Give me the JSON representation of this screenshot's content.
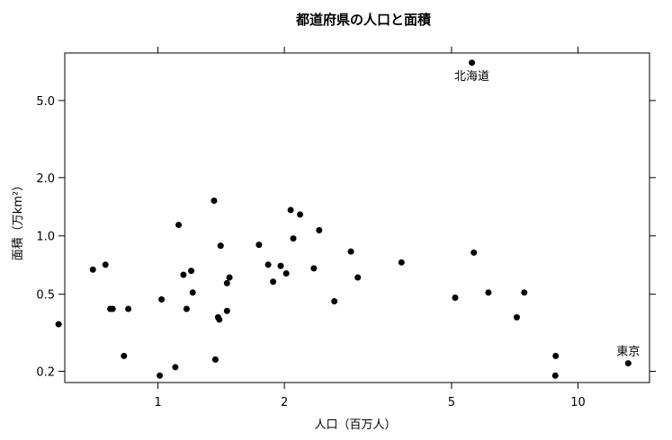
{
  "chart_data": {
    "type": "scatter",
    "title": "都道府県の人口と面積",
    "xlabel": "人口（百万人）",
    "ylabel": "面積（万km²）",
    "x_scale": "log",
    "y_scale": "log",
    "xlim": [
      0.6,
      14.8
    ],
    "ylim": [
      0.175,
      8.8
    ],
    "x_ticks": [
      1,
      2,
      5,
      10
    ],
    "x_tick_labels": [
      "1",
      "2",
      "5",
      "10"
    ],
    "y_ticks": [
      0.2,
      0.5,
      1.0,
      2.0,
      5.0
    ],
    "y_tick_labels": [
      "0.2",
      "0.5",
      "1.0",
      "2.0",
      "5.0"
    ],
    "grid": false,
    "series": [
      {
        "points": [
          {
            "x": 0.58,
            "y": 0.35
          },
          {
            "x": 0.7,
            "y": 0.67
          },
          {
            "x": 0.75,
            "y": 0.71
          },
          {
            "x": 0.77,
            "y": 0.42
          },
          {
            "x": 0.78,
            "y": 0.42
          },
          {
            "x": 0.83,
            "y": 0.24
          },
          {
            "x": 0.85,
            "y": 0.42
          },
          {
            "x": 1.01,
            "y": 0.19
          },
          {
            "x": 1.02,
            "y": 0.47
          },
          {
            "x": 1.1,
            "y": 0.21
          },
          {
            "x": 1.12,
            "y": 1.14
          },
          {
            "x": 1.15,
            "y": 0.63
          },
          {
            "x": 1.17,
            "y": 0.42
          },
          {
            "x": 1.2,
            "y": 0.66
          },
          {
            "x": 1.21,
            "y": 0.51
          },
          {
            "x": 1.36,
            "y": 1.52
          },
          {
            "x": 1.37,
            "y": 0.23
          },
          {
            "x": 1.39,
            "y": 0.38
          },
          {
            "x": 1.4,
            "y": 0.37
          },
          {
            "x": 1.41,
            "y": 0.89
          },
          {
            "x": 1.46,
            "y": 0.57
          },
          {
            "x": 1.46,
            "y": 0.41
          },
          {
            "x": 1.48,
            "y": 0.61
          },
          {
            "x": 1.74,
            "y": 0.9
          },
          {
            "x": 1.83,
            "y": 0.71
          },
          {
            "x": 1.88,
            "y": 0.58
          },
          {
            "x": 1.96,
            "y": 0.7
          },
          {
            "x": 2.02,
            "y": 0.64
          },
          {
            "x": 2.07,
            "y": 1.36
          },
          {
            "x": 2.1,
            "y": 0.97
          },
          {
            "x": 2.18,
            "y": 1.29
          },
          {
            "x": 2.35,
            "y": 0.68
          },
          {
            "x": 2.42,
            "y": 1.07
          },
          {
            "x": 2.63,
            "y": 0.46
          },
          {
            "x": 2.88,
            "y": 0.83
          },
          {
            "x": 2.99,
            "y": 0.61
          },
          {
            "x": 3.8,
            "y": 0.73
          },
          {
            "x": 5.1,
            "y": 0.48
          },
          {
            "x": 5.59,
            "y": 7.84,
            "label": "北海道"
          },
          {
            "x": 5.65,
            "y": 0.82
          },
          {
            "x": 6.12,
            "y": 0.51
          },
          {
            "x": 7.15,
            "y": 0.38
          },
          {
            "x": 7.45,
            "y": 0.51
          },
          {
            "x": 8.85,
            "y": 0.24
          },
          {
            "x": 8.83,
            "y": 0.19
          },
          {
            "x": 13.17,
            "y": 0.22,
            "label": "東京"
          }
        ]
      }
    ]
  }
}
